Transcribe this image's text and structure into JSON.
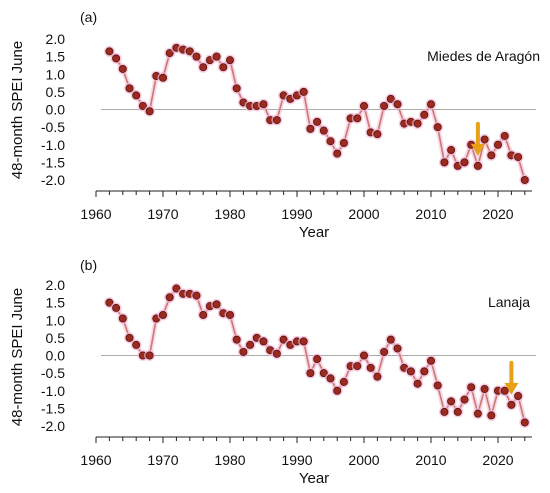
{
  "chart_data": [
    {
      "type": "line",
      "panel_label": "(a)",
      "site": "Miedes de Aragón",
      "xlabel": "Year",
      "ylabel": "48-month SPEI June",
      "xlim": [
        1955,
        2025
      ],
      "ylim": [
        -2.0,
        2.0
      ],
      "xticks": [
        1960,
        1970,
        1980,
        1990,
        2000,
        2010,
        2020
      ],
      "yticks": [
        -2.0,
        -1.5,
        -1.0,
        -0.5,
        0.0,
        0.5,
        1.0,
        1.5,
        2.0
      ],
      "ytick_labels": [
        "-2.0",
        "-1.5",
        "-1.0",
        "-0.5",
        "0.0",
        "0.5",
        "1.0",
        "1.5",
        "2.0"
      ],
      "reference_line": 0,
      "arrow_year": 2017,
      "x": [
        1962,
        1963,
        1964,
        1965,
        1966,
        1967,
        1968,
        1969,
        1970,
        1971,
        1972,
        1973,
        1974,
        1975,
        1976,
        1977,
        1978,
        1979,
        1980,
        1981,
        1982,
        1983,
        1984,
        1985,
        1986,
        1987,
        1988,
        1989,
        1990,
        1991,
        1992,
        1993,
        1994,
        1995,
        1996,
        1997,
        1998,
        1999,
        2000,
        2001,
        2002,
        2003,
        2004,
        2005,
        2006,
        2007,
        2008,
        2009,
        2010,
        2011,
        2012,
        2013,
        2014,
        2015,
        2016,
        2017,
        2018,
        2019,
        2020,
        2021,
        2022,
        2023,
        2024
      ],
      "y": [
        1.65,
        1.45,
        1.15,
        0.6,
        0.4,
        0.1,
        -0.05,
        0.95,
        0.9,
        1.6,
        1.75,
        1.7,
        1.65,
        1.5,
        1.2,
        1.4,
        1.5,
        1.2,
        1.4,
        0.6,
        0.2,
        0.1,
        0.1,
        0.15,
        -0.3,
        -0.3,
        0.4,
        0.3,
        0.4,
        0.5,
        -0.55,
        -0.35,
        -0.6,
        -0.9,
        -1.25,
        -0.95,
        -0.25,
        -0.25,
        0.1,
        -0.65,
        -0.7,
        0.1,
        0.3,
        0.15,
        -0.4,
        -0.35,
        -0.4,
        -0.15,
        0.15,
        -0.5,
        -1.5,
        -1.15,
        -1.6,
        -1.5,
        -1.0,
        -1.6,
        -0.85,
        -1.3,
        -1.0,
        -0.75,
        -1.3,
        -1.35,
        -2.0
      ],
      "colors": {
        "line": "#c97a72",
        "marker_fill": "#9b2a1f",
        "marker_edge": "#5a1410",
        "halo": "#f5b8d6",
        "arrow": "#e6a117",
        "zero_line": "#aaaaaa"
      }
    },
    {
      "type": "line",
      "panel_label": "(b)",
      "site": "Lanaja",
      "xlabel": "Year",
      "ylabel": "48-month SPEI June",
      "xlim": [
        1955,
        2025
      ],
      "ylim": [
        -2.0,
        2.0
      ],
      "xticks": [
        1960,
        1970,
        1980,
        1990,
        2000,
        2010,
        2020
      ],
      "yticks": [
        -2.0,
        -1.5,
        -1.0,
        -0.5,
        0.0,
        0.5,
        1.0,
        1.5,
        2.0
      ],
      "ytick_labels": [
        "-2.0",
        "-1.5",
        "-1.0",
        "-0.5",
        "0.0",
        "0.5",
        "1.0",
        "1.5",
        "2.0"
      ],
      "reference_line": 0,
      "arrow_year": 2022,
      "x": [
        1962,
        1963,
        1964,
        1965,
        1966,
        1967,
        1968,
        1969,
        1970,
        1971,
        1972,
        1973,
        1974,
        1975,
        1976,
        1977,
        1978,
        1979,
        1980,
        1981,
        1982,
        1983,
        1984,
        1985,
        1986,
        1987,
        1988,
        1989,
        1990,
        1991,
        1992,
        1993,
        1994,
        1995,
        1996,
        1997,
        1998,
        1999,
        2000,
        2001,
        2002,
        2003,
        2004,
        2005,
        2006,
        2007,
        2008,
        2009,
        2010,
        2011,
        2012,
        2013,
        2014,
        2015,
        2016,
        2017,
        2018,
        2019,
        2020,
        2021,
        2022,
        2023,
        2024
      ],
      "y": [
        1.5,
        1.35,
        1.05,
        0.5,
        0.3,
        0.0,
        0.0,
        1.05,
        1.15,
        1.65,
        1.9,
        1.75,
        1.75,
        1.7,
        1.15,
        1.4,
        1.45,
        1.2,
        1.15,
        0.45,
        0.1,
        0.3,
        0.5,
        0.4,
        0.15,
        0.05,
        0.45,
        0.3,
        0.4,
        0.4,
        -0.5,
        -0.1,
        -0.5,
        -0.65,
        -1.0,
        -0.75,
        -0.3,
        -0.3,
        0.0,
        -0.35,
        -0.6,
        0.1,
        0.45,
        0.2,
        -0.35,
        -0.45,
        -0.8,
        -0.45,
        -0.15,
        -0.85,
        -1.6,
        -1.3,
        -1.6,
        -1.25,
        -0.9,
        -1.65,
        -0.95,
        -1.7,
        -1.0,
        -1.0,
        -1.4,
        -1.15,
        -1.9
      ],
      "colors": {
        "line": "#c97a72",
        "marker_fill": "#9b2a1f",
        "marker_edge": "#5a1410",
        "halo": "#f5b8d6",
        "arrow": "#e6a117",
        "zero_line": "#aaaaaa"
      }
    }
  ]
}
